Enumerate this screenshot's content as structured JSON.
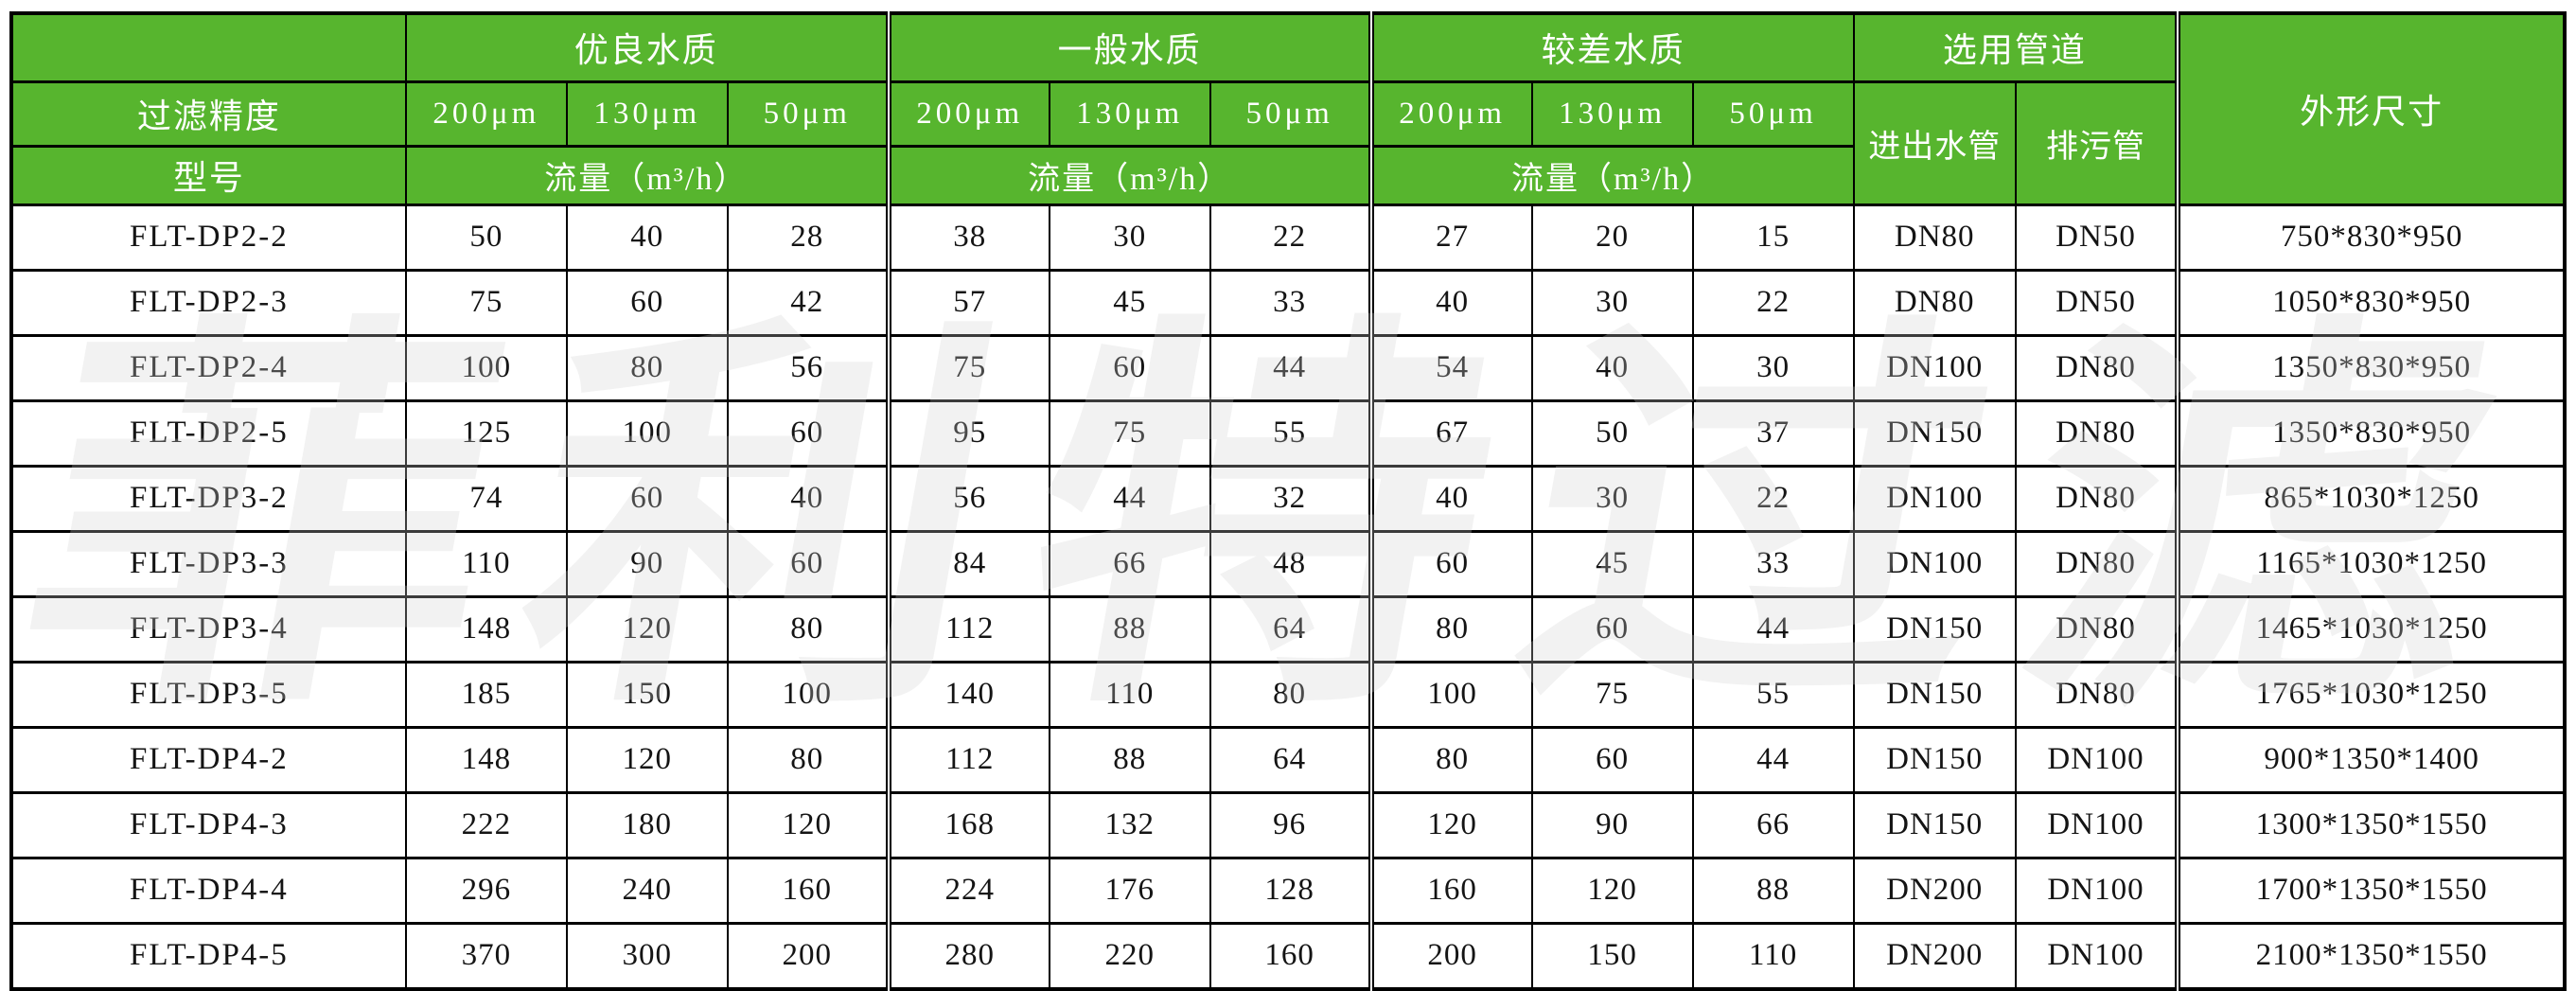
{
  "colors": {
    "header_green": "#57b52e",
    "border": "#000000"
  },
  "watermark": {
    "text": "菲利特过滤"
  },
  "table": {
    "header": {
      "corner_top": "",
      "filter_precision_label": "过滤精度",
      "model_label": "型号",
      "groups": [
        {
          "label": "优良水质",
          "subcols": [
            "200μm",
            "130μm",
            "50μm"
          ],
          "flow_label": "流量（m³/h）"
        },
        {
          "label": "一般水质",
          "subcols": [
            "200μm",
            "130μm",
            "50μm"
          ],
          "flow_label": "流量（m³/h）"
        },
        {
          "label": "较差水质",
          "subcols": [
            "200μm",
            "130μm",
            "50μm"
          ],
          "flow_label": "流量（m³/h）"
        }
      ],
      "pipes_group_label": "选用管道",
      "pipe_cols": [
        "进出水管",
        "排污管"
      ],
      "dimensions_label": "外形尺寸"
    },
    "rows": [
      {
        "model": "FLT-DP2-2",
        "excellent": [
          50,
          40,
          28
        ],
        "general": [
          38,
          30,
          22
        ],
        "poor": [
          27,
          20,
          15
        ],
        "inlet_outlet": "DN80",
        "drain": "DN50",
        "dimensions": "750*830*950"
      },
      {
        "model": "FLT-DP2-3",
        "excellent": [
          75,
          60,
          42
        ],
        "general": [
          57,
          45,
          33
        ],
        "poor": [
          40,
          30,
          22
        ],
        "inlet_outlet": "DN80",
        "drain": "DN50",
        "dimensions": "1050*830*950"
      },
      {
        "model": "FLT-DP2-4",
        "excellent": [
          100,
          80,
          56
        ],
        "general": [
          75,
          60,
          44
        ],
        "poor": [
          54,
          40,
          30
        ],
        "inlet_outlet": "DN100",
        "drain": "DN80",
        "dimensions": "1350*830*950"
      },
      {
        "model": "FLT-DP2-5",
        "excellent": [
          125,
          100,
          60
        ],
        "general": [
          95,
          75,
          55
        ],
        "poor": [
          67,
          50,
          37
        ],
        "inlet_outlet": "DN150",
        "drain": "DN80",
        "dimensions": "1350*830*950"
      },
      {
        "model": "FLT-DP3-2",
        "excellent": [
          74,
          60,
          40
        ],
        "general": [
          56,
          44,
          32
        ],
        "poor": [
          40,
          30,
          22
        ],
        "inlet_outlet": "DN100",
        "drain": "DN80",
        "dimensions": "865*1030*1250"
      },
      {
        "model": "FLT-DP3-3",
        "excellent": [
          110,
          90,
          60
        ],
        "general": [
          84,
          66,
          48
        ],
        "poor": [
          60,
          45,
          33
        ],
        "inlet_outlet": "DN100",
        "drain": "DN80",
        "dimensions": "1165*1030*1250"
      },
      {
        "model": "FLT-DP3-4",
        "excellent": [
          148,
          120,
          80
        ],
        "general": [
          112,
          88,
          64
        ],
        "poor": [
          80,
          60,
          44
        ],
        "inlet_outlet": "DN150",
        "drain": "DN80",
        "dimensions": "1465*1030*1250"
      },
      {
        "model": "FLT-DP3-5",
        "excellent": [
          185,
          150,
          100
        ],
        "general": [
          140,
          110,
          80
        ],
        "poor": [
          100,
          75,
          55
        ],
        "inlet_outlet": "DN150",
        "drain": "DN80",
        "dimensions": "1765*1030*1250"
      },
      {
        "model": "FLT-DP4-2",
        "excellent": [
          148,
          120,
          80
        ],
        "general": [
          112,
          88,
          64
        ],
        "poor": [
          80,
          60,
          44
        ],
        "inlet_outlet": "DN150",
        "drain": "DN100",
        "dimensions": "900*1350*1400"
      },
      {
        "model": "FLT-DP4-3",
        "excellent": [
          222,
          180,
          120
        ],
        "general": [
          168,
          132,
          96
        ],
        "poor": [
          120,
          90,
          66
        ],
        "inlet_outlet": "DN150",
        "drain": "DN100",
        "dimensions": "1300*1350*1550"
      },
      {
        "model": "FLT-DP4-4",
        "excellent": [
          296,
          240,
          160
        ],
        "general": [
          224,
          176,
          128
        ],
        "poor": [
          160,
          120,
          88
        ],
        "inlet_outlet": "DN200",
        "drain": "DN100",
        "dimensions": "1700*1350*1550"
      },
      {
        "model": "FLT-DP4-5",
        "excellent": [
          370,
          300,
          200
        ],
        "general": [
          280,
          220,
          160
        ],
        "poor": [
          200,
          150,
          110
        ],
        "inlet_outlet": "DN200",
        "drain": "DN100",
        "dimensions": "2100*1350*1550"
      }
    ]
  }
}
